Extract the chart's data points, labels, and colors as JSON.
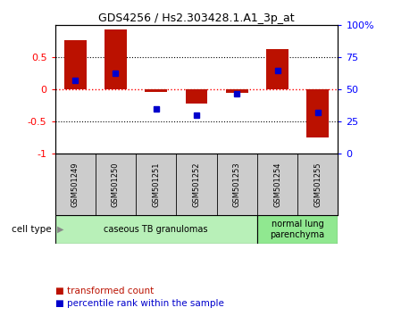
{
  "title": "GDS4256 / Hs2.303428.1.A1_3p_at",
  "samples": [
    "GSM501249",
    "GSM501250",
    "GSM501251",
    "GSM501252",
    "GSM501253",
    "GSM501254",
    "GSM501255"
  ],
  "transformed_counts": [
    0.77,
    0.93,
    -0.03,
    -0.22,
    -0.05,
    0.63,
    -0.75
  ],
  "percentile_ranks_pct": [
    57,
    63,
    35,
    30,
    47,
    65,
    32
  ],
  "cell_types": [
    {
      "label": "caseous TB granulomas",
      "samples_range": [
        0,
        4
      ],
      "color": "#b8f0b8"
    },
    {
      "label": "normal lung\nparenchyma",
      "samples_range": [
        5,
        6
      ],
      "color": "#90e890"
    }
  ],
  "bar_color": "#bb1100",
  "percentile_color": "#0000cc",
  "ylim_left": [
    -1,
    1
  ],
  "ylim_right": [
    0,
    100
  ],
  "yticks_left": [
    -1,
    -0.5,
    0,
    0.5
  ],
  "ytick_labels_left": [
    "-1",
    "-0.5",
    "0",
    "0.5"
  ],
  "yticks_right": [
    0,
    25,
    50,
    75,
    100
  ],
  "ytick_labels_right": [
    "0",
    "25",
    "50",
    "75",
    "100%"
  ],
  "background_color": "#ffffff",
  "plot_bg": "#ffffff",
  "legend_red_label": "transformed count",
  "legend_blue_label": "percentile rank within the sample",
  "cell_type_label": "cell type",
  "sample_label_bg": "#cccccc"
}
